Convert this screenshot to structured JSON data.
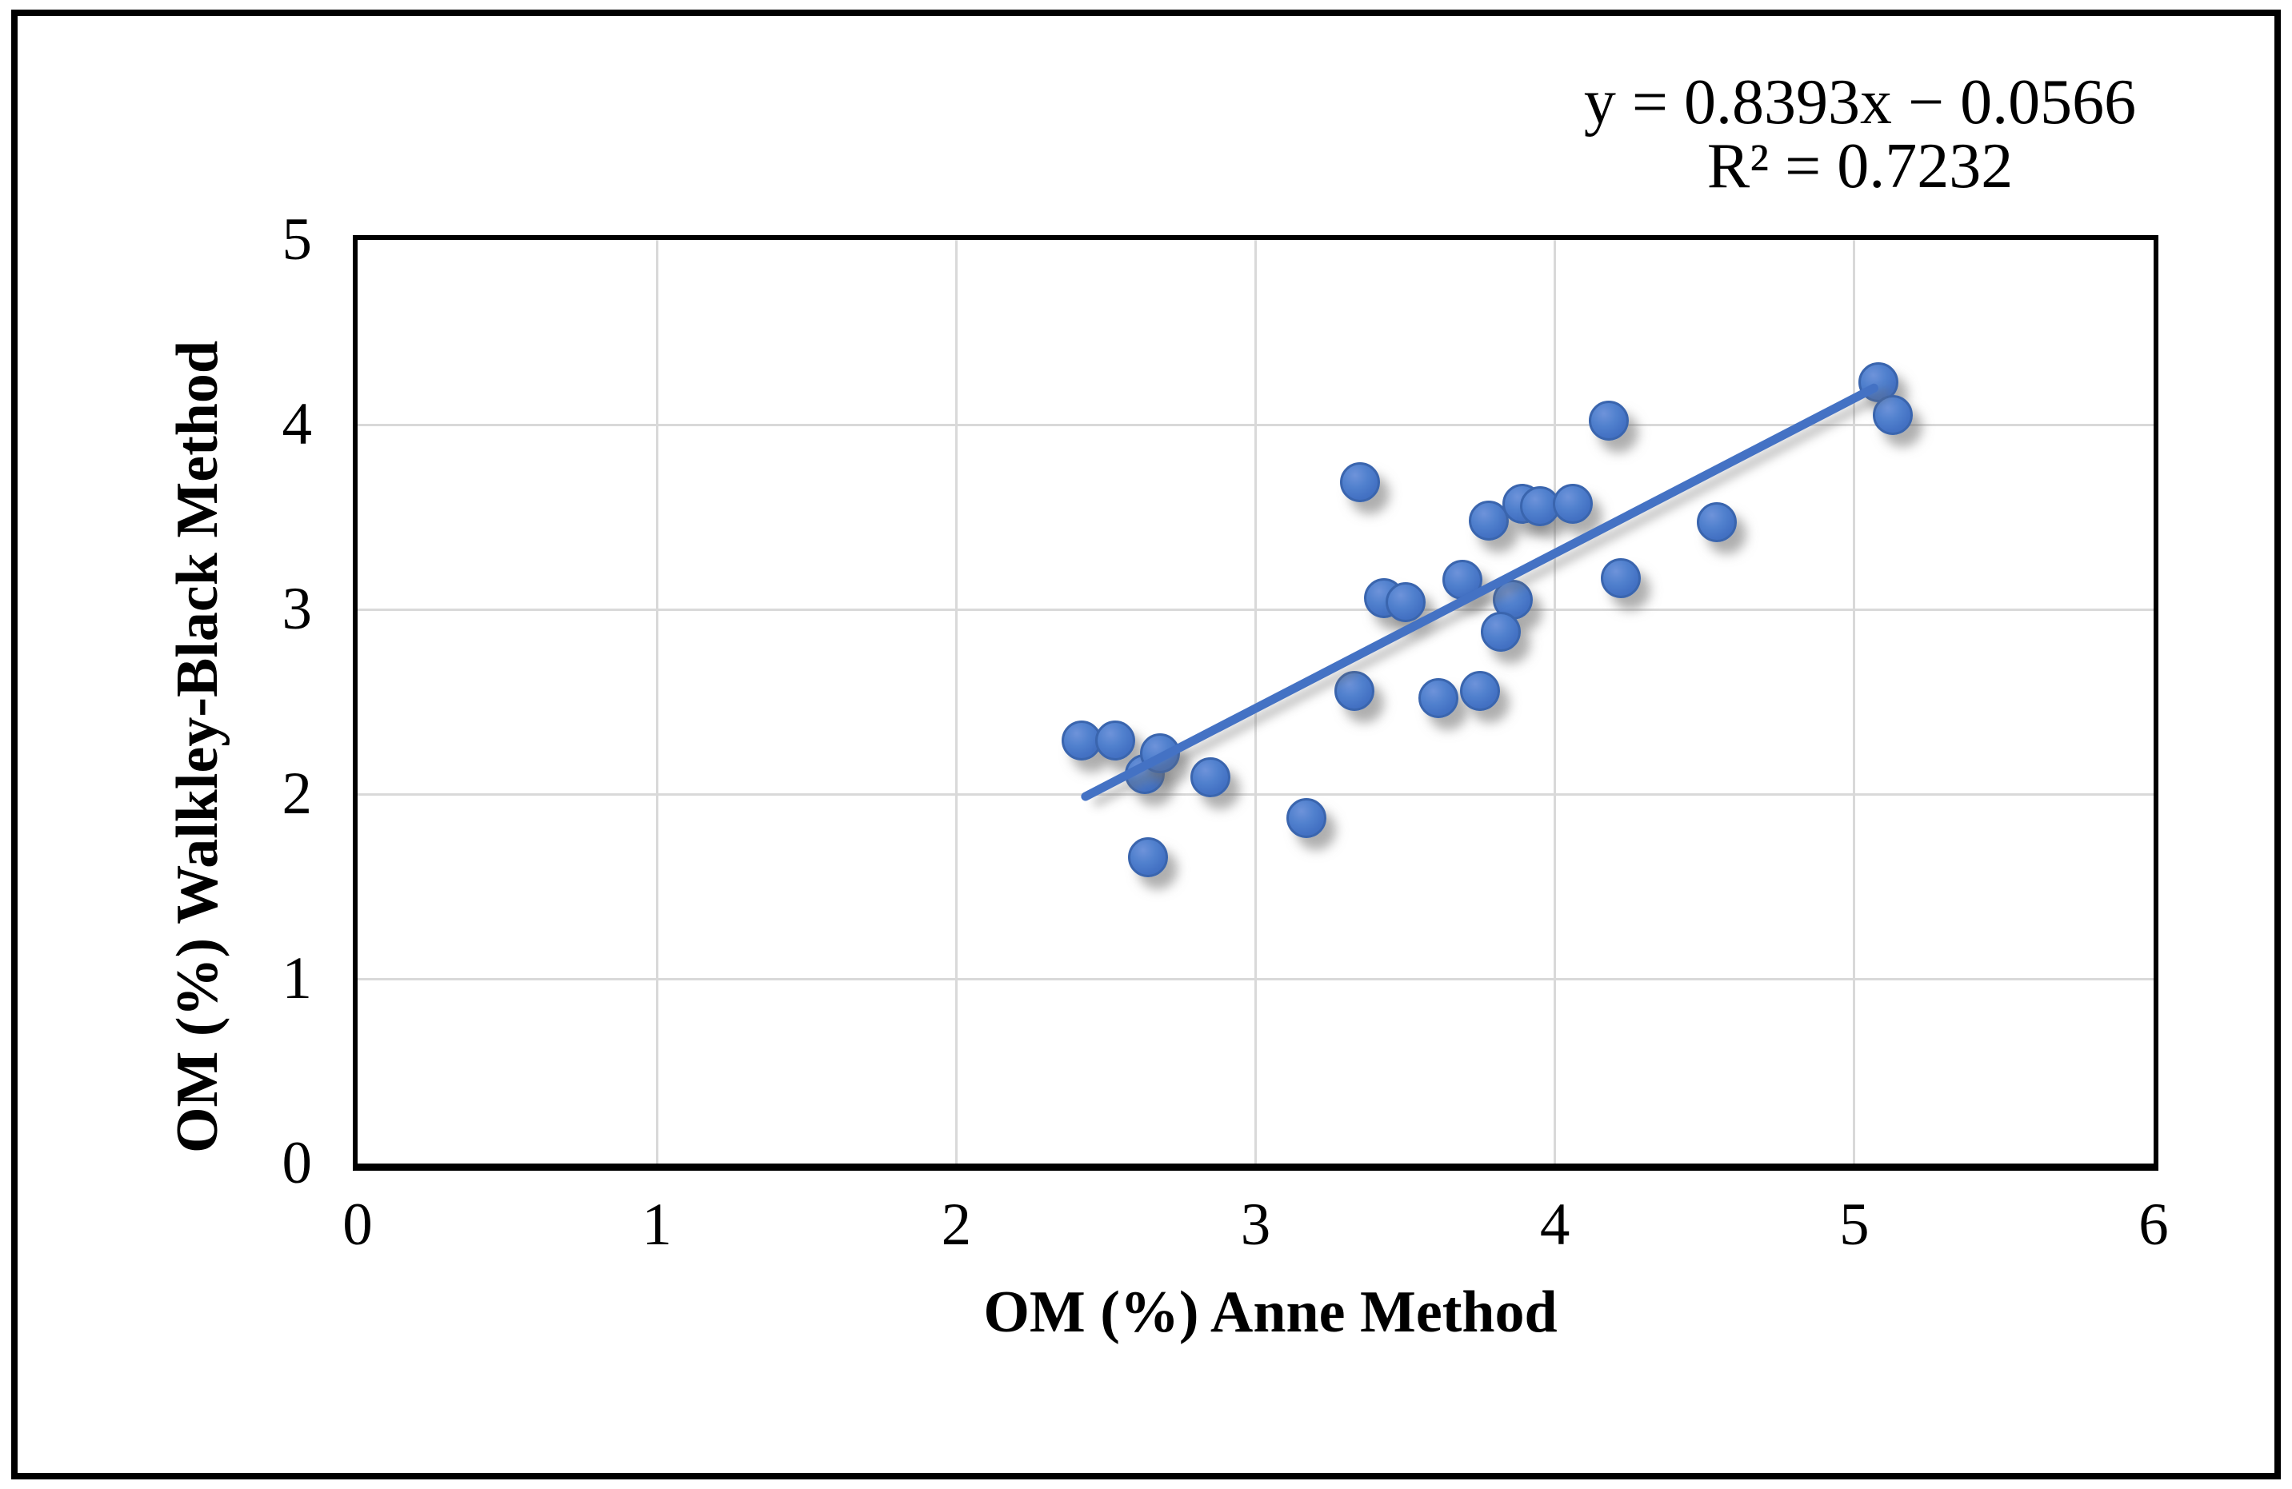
{
  "chart_data": {
    "type": "scatter",
    "xlabel": "OM (%) Anne Method",
    "ylabel": "OM (%) Walkley-Black Method",
    "xlim": [
      0,
      6
    ],
    "ylim": [
      0,
      5
    ],
    "xticks": [
      0,
      1,
      2,
      3,
      4,
      5,
      6
    ],
    "yticks": [
      0,
      1,
      2,
      3,
      4,
      5
    ],
    "grid": true,
    "legend": false,
    "equation": {
      "line1": "y = 0.8393x − 0.0566",
      "line2": "R² = 0.7232"
    },
    "trendline": {
      "slope": 0.8393,
      "intercept": -0.0566,
      "x_start": 2.42,
      "x_end": 5.08
    },
    "series": [
      {
        "points": [
          [
            2.42,
            2.29
          ],
          [
            2.53,
            2.29
          ],
          [
            2.63,
            2.11
          ],
          [
            2.68,
            2.22
          ],
          [
            2.85,
            2.09
          ],
          [
            2.64,
            1.66
          ],
          [
            3.17,
            1.87
          ],
          [
            3.33,
            2.56
          ],
          [
            3.61,
            2.52
          ],
          [
            3.75,
            2.56
          ],
          [
            3.35,
            3.69
          ],
          [
            3.43,
            3.06
          ],
          [
            3.5,
            3.04
          ],
          [
            3.69,
            3.16
          ],
          [
            3.78,
            3.48
          ],
          [
            3.89,
            3.57
          ],
          [
            3.95,
            3.56
          ],
          [
            4.06,
            3.57
          ],
          [
            3.86,
            3.05
          ],
          [
            3.82,
            2.88
          ],
          [
            4.22,
            3.17
          ],
          [
            4.54,
            3.47
          ],
          [
            4.18,
            4.02
          ],
          [
            5.08,
            4.23
          ],
          [
            5.13,
            4.05
          ]
        ]
      }
    ],
    "colors": {
      "marker_fill": "#4472C4",
      "marker_border": "#3A65AE",
      "trendline": "#4472C4",
      "gridline": "#D9D9D9",
      "axis": "#000000",
      "text": "#000000",
      "background": "#FFFFFF"
    }
  }
}
